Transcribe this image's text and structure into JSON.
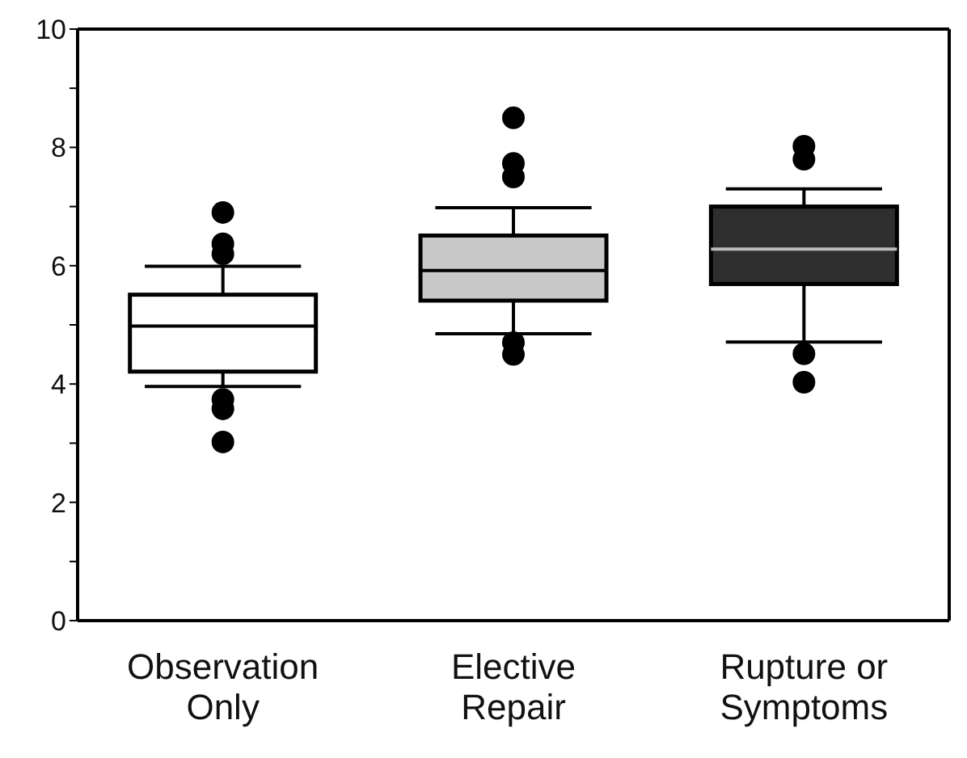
{
  "chart_data": {
    "type": "box",
    "categories": [
      "Observation Only",
      "Elective Repair",
      "Rupture or Symptoms"
    ],
    "colors": [
      "#ffffff",
      "#c8c8c8",
      "#2e2e2e"
    ],
    "boxes": [
      {
        "low": 3.96,
        "q1": 4.21,
        "median": 4.98,
        "q3": 5.51,
        "high": 5.99,
        "outliers": [
          6.9,
          6.37,
          6.2,
          3.74,
          3.58,
          3.02
        ]
      },
      {
        "low": 4.85,
        "q1": 5.41,
        "median": 5.92,
        "q3": 6.51,
        "high": 6.98,
        "outliers": [
          8.5,
          7.73,
          7.5,
          4.7,
          4.5
        ]
      },
      {
        "low": 4.71,
        "q1": 5.69,
        "median": 6.28,
        "q3": 7.0,
        "high": 7.3,
        "outliers": [
          8.02,
          7.8,
          4.51,
          4.03
        ]
      }
    ],
    "ylim": [
      0,
      10
    ],
    "yticks": [
      0,
      {
        "value": 1,
        "label": null
      },
      2,
      {
        "value": 3,
        "label": null
      },
      4,
      {
        "value": 5,
        "label": null
      },
      6,
      {
        "value": 7,
        "label": null
      },
      8,
      {
        "value": 9,
        "label": null
      },
      10
    ],
    "marker": "circle"
  }
}
